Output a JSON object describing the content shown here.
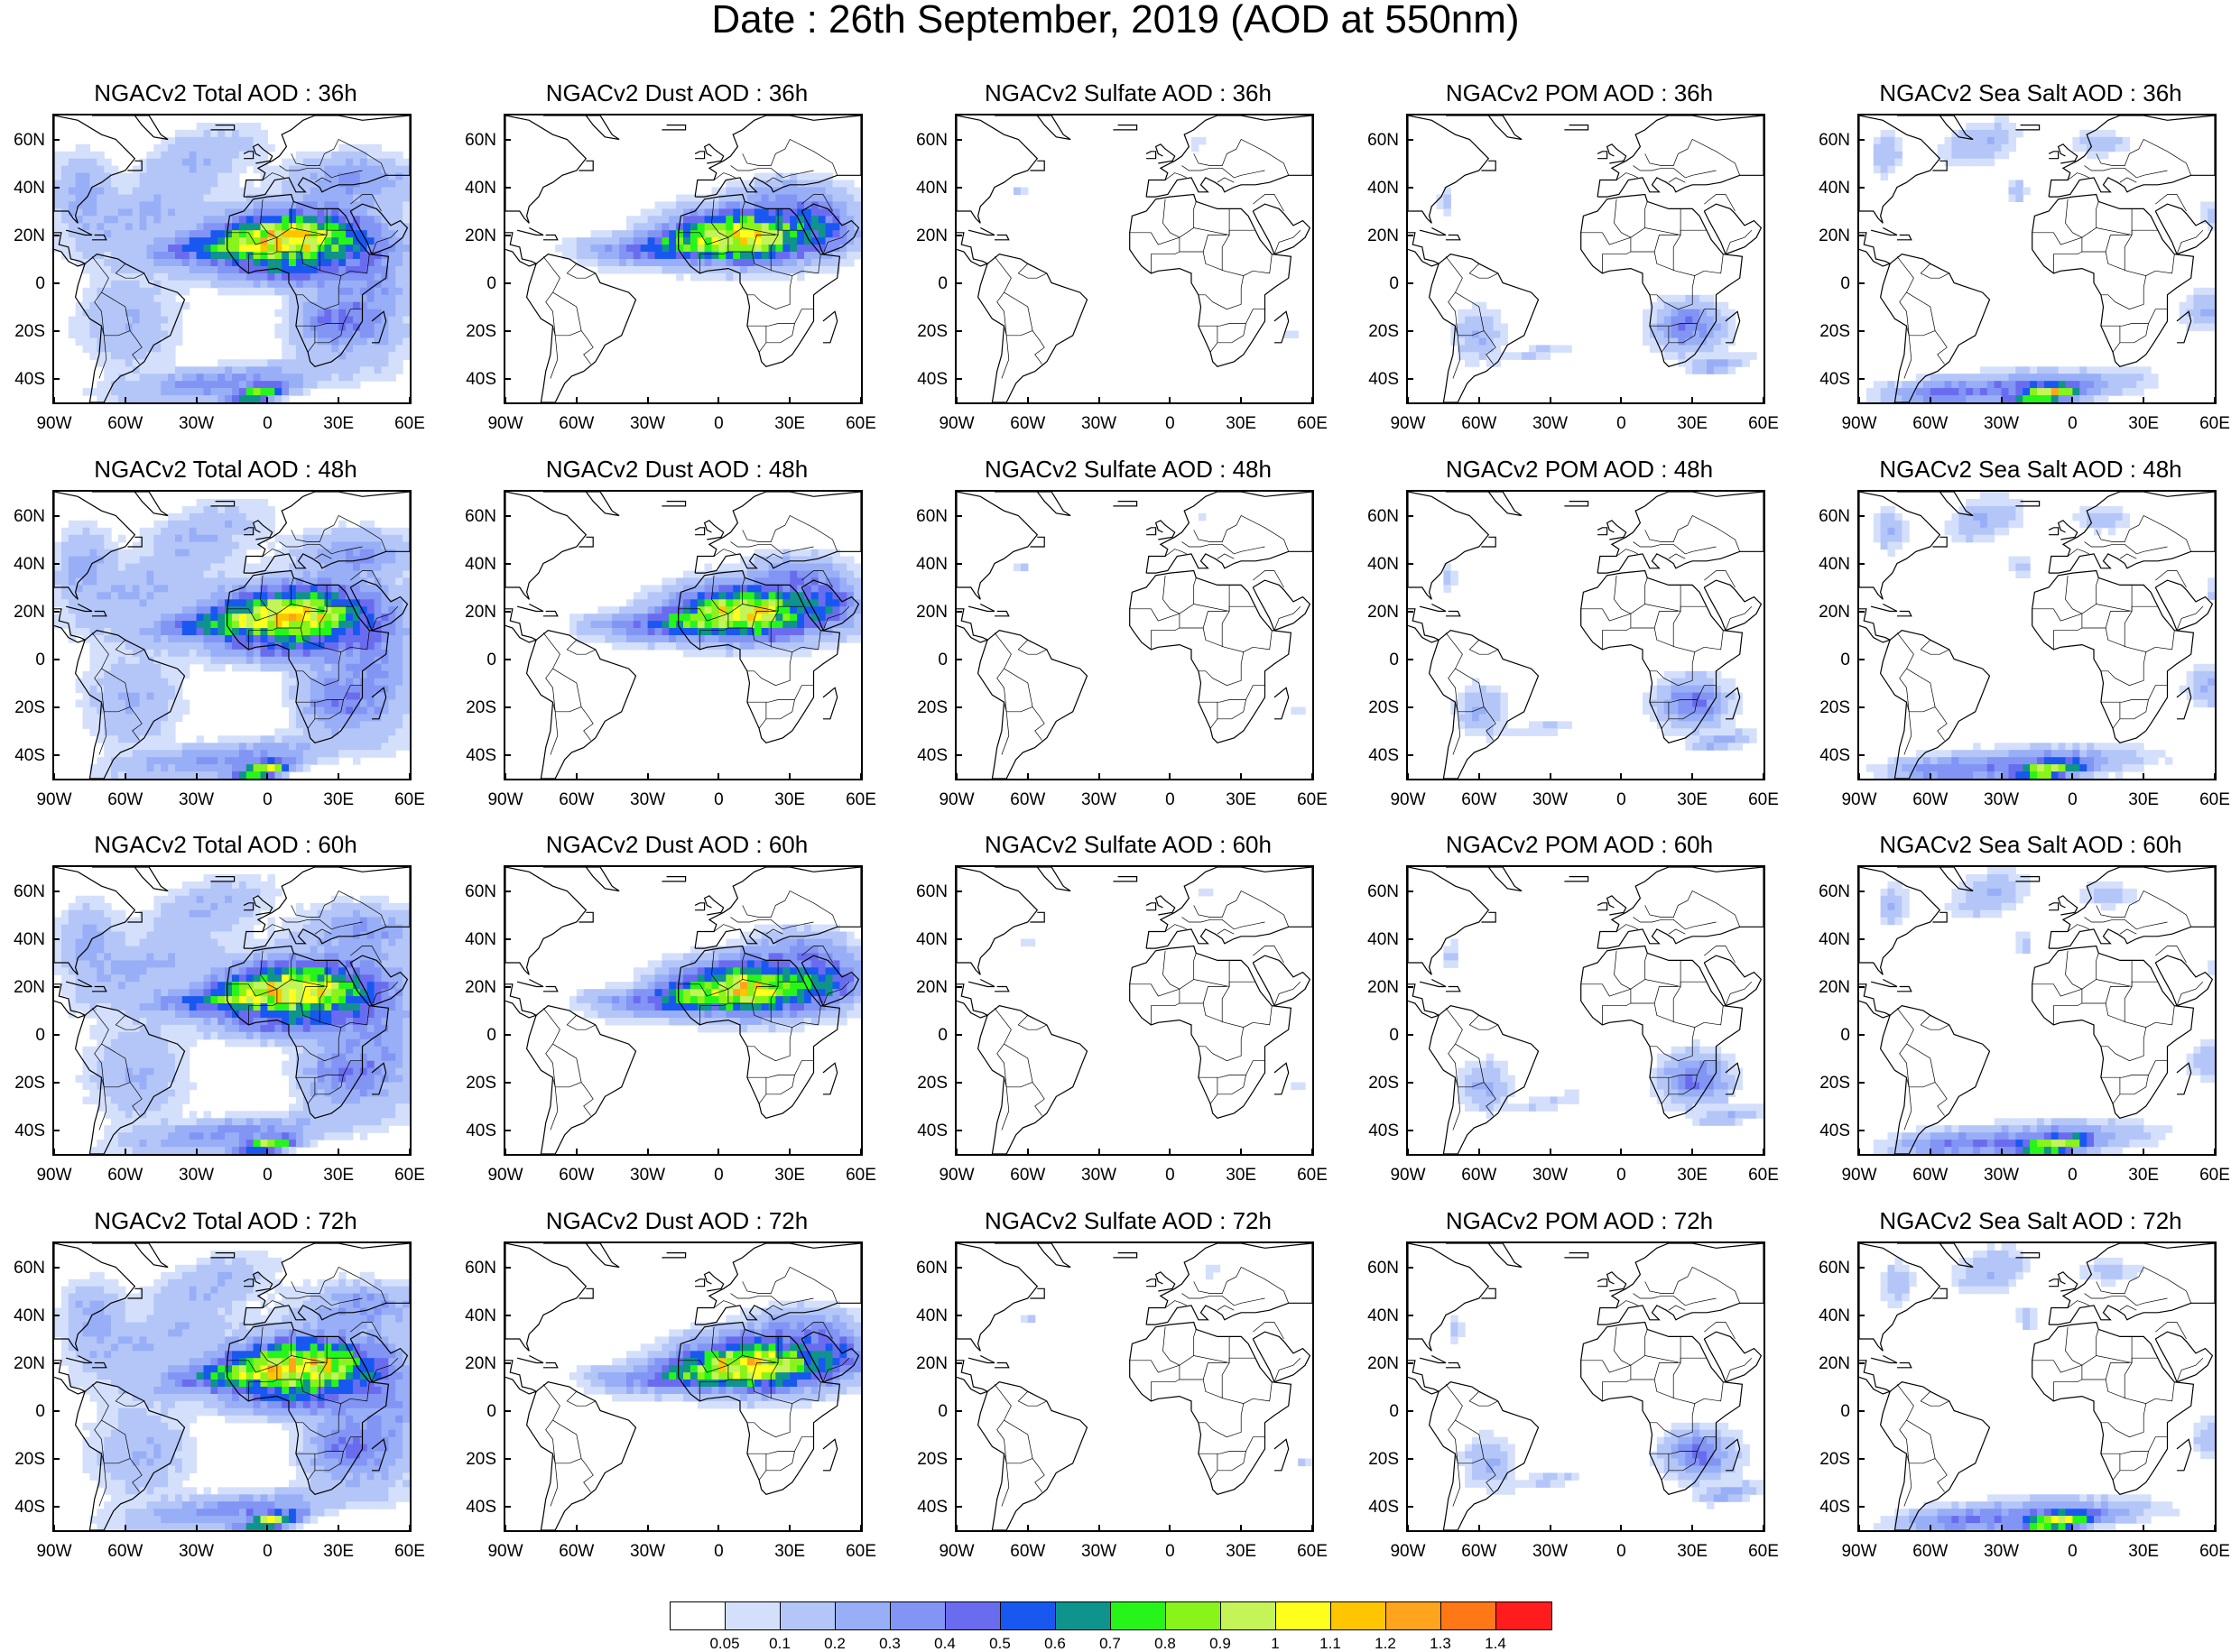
{
  "title": "Date : 26th September, 2019 (AOD at 550nm)",
  "rows": [
    "36h",
    "48h",
    "60h",
    "72h"
  ],
  "panels": [
    {
      "title": "NGACv2 Total AOD : 36h",
      "species": "total"
    },
    {
      "title": "NGACv2 Dust AOD : 36h",
      "species": "dust"
    },
    {
      "title": "NGACv2 Sulfate AOD : 36h",
      "species": "sulfate"
    },
    {
      "title": "NGACv2 POM AOD : 36h",
      "species": "pom"
    },
    {
      "title": "NGACv2 Sea Salt AOD : 36h",
      "species": "seasalt"
    },
    {
      "title": "NGACv2 Total AOD : 48h",
      "species": "total"
    },
    {
      "title": "NGACv2 Dust AOD : 48h",
      "species": "dust"
    },
    {
      "title": "NGACv2 Sulfate AOD : 48h",
      "species": "sulfate"
    },
    {
      "title": "NGACv2 POM AOD : 48h",
      "species": "pom"
    },
    {
      "title": "NGACv2 Sea Salt AOD : 48h",
      "species": "seasalt"
    },
    {
      "title": "NGACv2 Total AOD : 60h",
      "species": "total"
    },
    {
      "title": "NGACv2 Dust AOD : 60h",
      "species": "dust"
    },
    {
      "title": "NGACv2 Sulfate AOD : 60h",
      "species": "sulfate"
    },
    {
      "title": "NGACv2 POM AOD : 60h",
      "species": "pom"
    },
    {
      "title": "NGACv2 Sea Salt AOD : 60h",
      "species": "seasalt"
    },
    {
      "title": "NGACv2 Total AOD : 72h",
      "species": "total"
    },
    {
      "title": "NGACv2 Dust AOD : 72h",
      "species": "dust"
    },
    {
      "title": "NGACv2 Sulfate AOD : 72h",
      "species": "sulfate"
    },
    {
      "title": "NGACv2 POM AOD : 72h",
      "species": "pom"
    },
    {
      "title": "NGACv2 Sea Salt  AOD : 72h",
      "species": "seasalt"
    }
  ],
  "lat_labels": [
    "60N",
    "40N",
    "20N",
    "0",
    "20S",
    "40S"
  ],
  "lon_labels": [
    "90W",
    "60W",
    "30W",
    "0",
    "30E",
    "60E"
  ],
  "lat_range": [
    -50,
    70
  ],
  "lon_range": [
    -90,
    60
  ],
  "colorbar": {
    "labels": [
      "0.05",
      "0.1",
      "0.2",
      "0.3",
      "0.4",
      "0.5",
      "0.6",
      "0.7",
      "0.8",
      "0.9",
      "1",
      "1.1",
      "1.2",
      "1.3",
      "1.4"
    ],
    "colors": [
      "#ffffff",
      "#d4e0fb",
      "#b4c6f8",
      "#98aef6",
      "#8294f4",
      "#6a6cef",
      "#1858f0",
      "#0f938d",
      "#27f51a",
      "#88f41a",
      "#c4f458",
      "#ffff1e",
      "#ffc600",
      "#ffa41c",
      "#ff7815",
      "#ff1c1c"
    ]
  },
  "colors": {
    "land_outline": "#000000",
    "background": "#ffffff"
  }
}
